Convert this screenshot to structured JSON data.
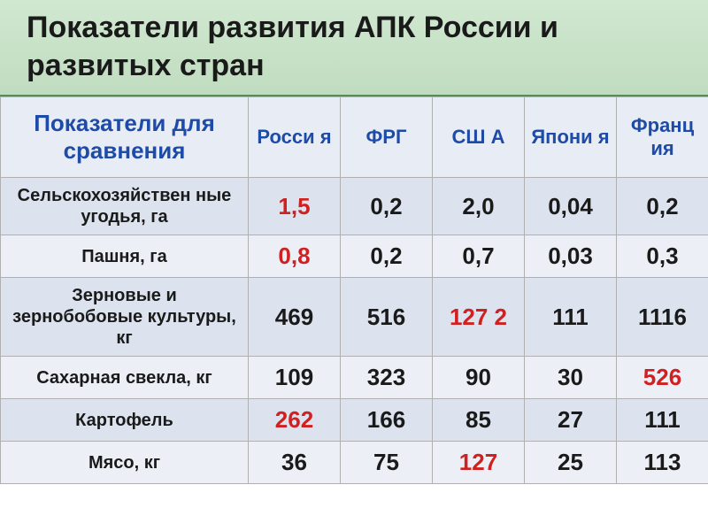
{
  "title": "Показатели развития  АПК России и развитых стран",
  "table": {
    "header": {
      "indicator": "Показатели для сравнения",
      "countries": [
        "Росси я",
        "ФРГ",
        "СШ А",
        "Япони я",
        "Франц ия"
      ]
    },
    "rows": [
      {
        "label": "Сельскохозяйствен ные угодья, га",
        "values": [
          "1,5",
          "0,2",
          "2,0",
          "0,04",
          "0,2"
        ],
        "highlight": [
          true,
          false,
          false,
          false,
          false
        ]
      },
      {
        "label": "Пашня, га",
        "values": [
          "0,8",
          "0,2",
          "0,7",
          "0,03",
          "0,3"
        ],
        "highlight": [
          true,
          false,
          false,
          false,
          false
        ]
      },
      {
        "label": "Зерновые и зернобобовые культуры, кг",
        "values": [
          "469",
          "516",
          "127 2",
          "111",
          "1116"
        ],
        "highlight": [
          false,
          false,
          true,
          false,
          false
        ]
      },
      {
        "label": "Сахарная свекла, кг",
        "values": [
          "109",
          "323",
          "90",
          "30",
          "526"
        ],
        "highlight": [
          false,
          false,
          false,
          false,
          true
        ]
      },
      {
        "label": "Картофель",
        "values": [
          "262",
          "166",
          "85",
          "27",
          "111"
        ],
        "highlight": [
          true,
          false,
          false,
          false,
          false
        ]
      },
      {
        "label": "Мясо, кг",
        "values": [
          "36",
          "75",
          "127",
          "25",
          "113"
        ],
        "highlight": [
          false,
          false,
          true,
          false,
          false
        ]
      }
    ]
  },
  "colors": {
    "header_text": "#1e4ba8",
    "highlight_text": "#d02020",
    "normal_text": "#1a1a1a",
    "even_row": "#dce3ee",
    "odd_row": "#ecf0f6",
    "title_bg_top": "#d0e8d0",
    "title_bg_bottom": "#c0dcc0",
    "border": "#b0b0b0"
  }
}
